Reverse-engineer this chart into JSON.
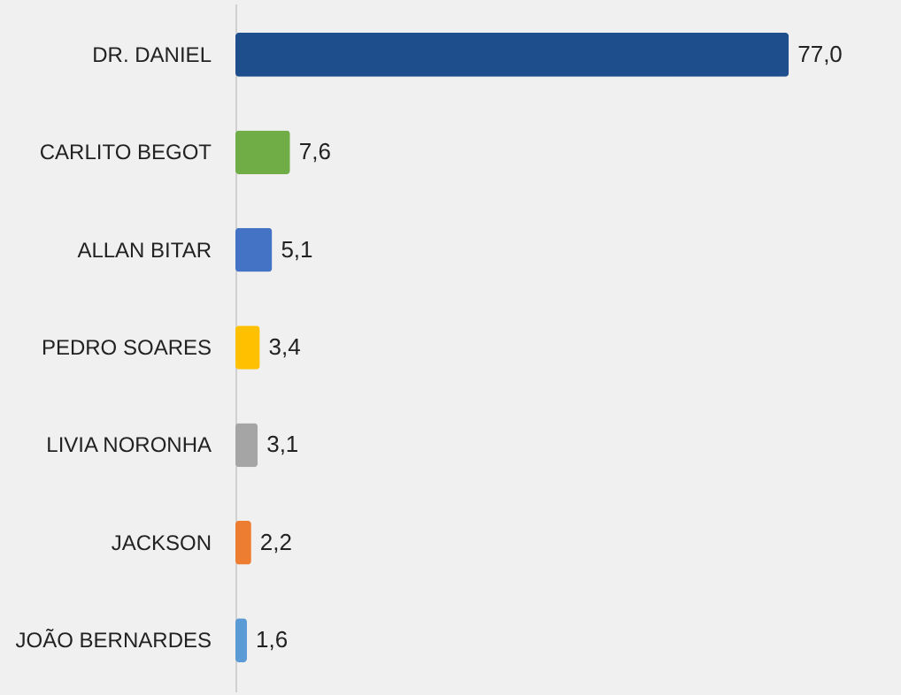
{
  "chart_data": {
    "type": "bar",
    "orientation": "horizontal",
    "categories": [
      "DR. DANIEL",
      "CARLITO BEGOT",
      "ALLAN BITAR",
      "PEDRO SOARES",
      "LIVIA NORONHA",
      "JACKSON",
      "JOÃO BERNARDES"
    ],
    "values": [
      77.0,
      7.6,
      5.1,
      3.4,
      3.1,
      2.2,
      1.6
    ],
    "colors": [
      "#1f4e8c",
      "#70ad47",
      "#4472c4",
      "#ffc000",
      "#a5a5a5",
      "#ed7d31",
      "#5b9bd5"
    ],
    "value_labels": [
      "77,0",
      "7,6",
      "5,1",
      "3,4",
      "3,1",
      "2,2",
      "1,6"
    ],
    "grid": false,
    "legend": false
  }
}
